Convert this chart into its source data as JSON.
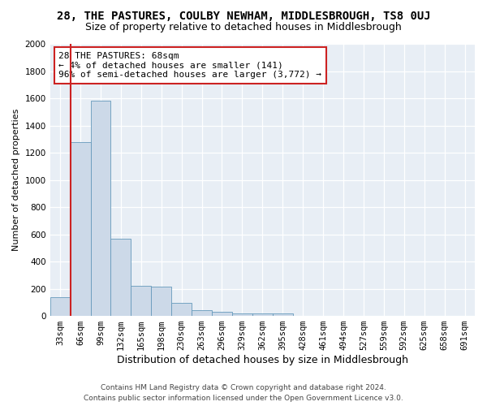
{
  "title1": "28, THE PASTURES, COULBY NEWHAM, MIDDLESBROUGH, TS8 0UJ",
  "title2": "Size of property relative to detached houses in Middlesbrough",
  "xlabel": "Distribution of detached houses by size in Middlesbrough",
  "ylabel": "Number of detached properties",
  "footer1": "Contains HM Land Registry data © Crown copyright and database right 2024.",
  "footer2": "Contains public sector information licensed under the Open Government Licence v3.0.",
  "annotation_line1": "28 THE PASTURES: 68sqm",
  "annotation_line2": "← 4% of detached houses are smaller (141)",
  "annotation_line3": "96% of semi-detached houses are larger (3,772) →",
  "bar_color": "#ccd9e8",
  "bar_edge_color": "#6699bb",
  "marker_color": "#cc2222",
  "annotation_box_color": "#ffffff",
  "annotation_box_edge": "#cc2222",
  "background_color": "#e8eef5",
  "categories": [
    "33sqm",
    "66sqm",
    "99sqm",
    "132sqm",
    "165sqm",
    "198sqm",
    "230sqm",
    "263sqm",
    "296sqm",
    "329sqm",
    "362sqm",
    "395sqm",
    "428sqm",
    "461sqm",
    "494sqm",
    "527sqm",
    "559sqm",
    "592sqm",
    "625sqm",
    "658sqm",
    "691sqm"
  ],
  "values": [
    140,
    1280,
    1580,
    565,
    220,
    215,
    95,
    45,
    30,
    20,
    20,
    20,
    0,
    0,
    0,
    0,
    0,
    0,
    0,
    0,
    0
  ],
  "ylim": [
    0,
    2000
  ],
  "yticks": [
    0,
    200,
    400,
    600,
    800,
    1000,
    1200,
    1400,
    1600,
    1800,
    2000
  ],
  "title1_fontsize": 10,
  "title2_fontsize": 9,
  "xlabel_fontsize": 9,
  "ylabel_fontsize": 8,
  "tick_fontsize": 7.5,
  "annotation_fontsize": 8,
  "footer_fontsize": 6.5
}
